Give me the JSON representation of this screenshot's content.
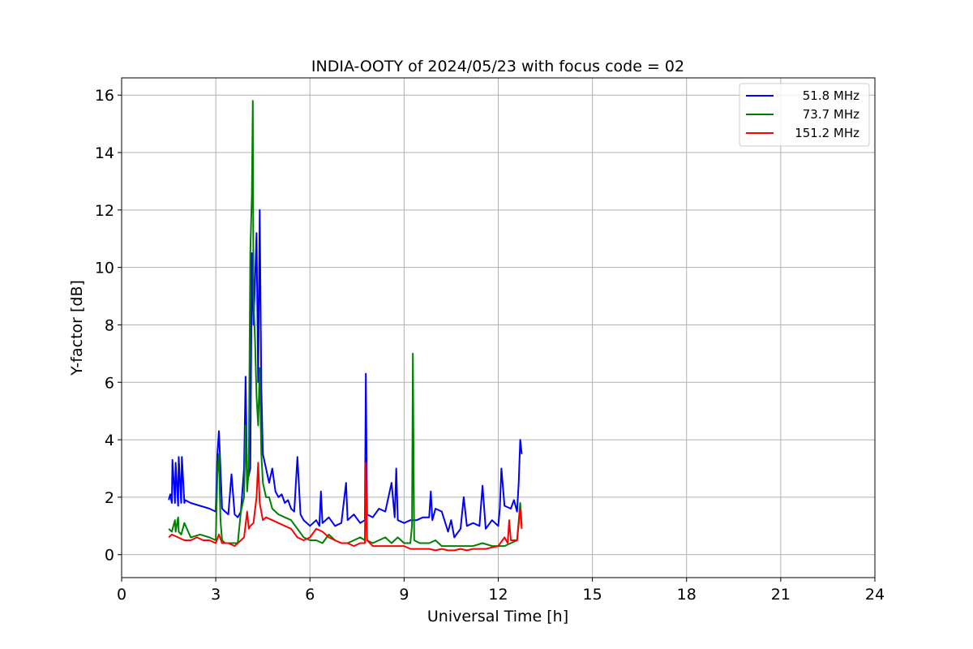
{
  "chart_data": {
    "type": "line",
    "title": "INDIA-OOTY of 2024/05/23 with focus code = 02",
    "xlabel": "Universal Time [h]",
    "ylabel": "Y-factor [dB]",
    "xlim": [
      0,
      24
    ],
    "ylim": [
      -0.8,
      16.6
    ],
    "xticks": [
      0,
      3,
      6,
      9,
      12,
      15,
      18,
      21,
      24
    ],
    "yticks": [
      0,
      2,
      4,
      6,
      8,
      10,
      12,
      14,
      16
    ],
    "grid": true,
    "legend_position": "top-right",
    "series": [
      {
        "name": "51.8 MHz",
        "color": "#0000ff",
        "x": [
          1.5,
          1.55,
          1.6,
          1.62,
          1.7,
          1.72,
          1.8,
          1.82,
          1.9,
          1.92,
          2.0,
          2.02,
          2.2,
          2.5,
          2.8,
          3.0,
          3.05,
          3.1,
          3.15,
          3.2,
          3.3,
          3.4,
          3.5,
          3.6,
          3.7,
          3.8,
          3.9,
          3.95,
          4.0,
          4.1,
          4.15,
          4.2,
          4.25,
          4.3,
          4.35,
          4.4,
          4.45,
          4.5,
          4.6,
          4.7,
          4.8,
          4.9,
          5.0,
          5.1,
          5.2,
          5.3,
          5.4,
          5.5,
          5.6,
          5.7,
          5.8,
          6.0,
          6.2,
          6.3,
          6.35,
          6.4,
          6.6,
          6.8,
          7.0,
          7.15,
          7.2,
          7.4,
          7.6,
          7.75,
          7.78,
          7.82,
          8.0,
          8.2,
          8.4,
          8.6,
          8.7,
          8.75,
          8.8,
          9.0,
          9.2,
          9.4,
          9.6,
          9.8,
          9.85,
          9.9,
          10.0,
          10.2,
          10.4,
          10.5,
          10.6,
          10.8,
          10.9,
          11.0,
          11.2,
          11.4,
          11.5,
          11.6,
          11.8,
          12.0,
          12.05,
          12.1,
          12.2,
          12.4,
          12.5,
          12.6,
          12.65,
          12.7,
          12.75
        ],
        "y": [
          1.9,
          2.1,
          1.8,
          3.3,
          1.8,
          3.2,
          1.7,
          3.4,
          1.8,
          3.4,
          1.8,
          1.9,
          1.8,
          1.7,
          1.6,
          1.5,
          3.5,
          4.3,
          3.0,
          1.6,
          1.5,
          1.4,
          2.8,
          1.4,
          1.3,
          1.5,
          3.0,
          6.2,
          2.5,
          3.0,
          10.5,
          8.0,
          9.5,
          11.2,
          6.0,
          12.0,
          5.8,
          3.5,
          3.0,
          2.5,
          3.0,
          2.2,
          2.0,
          2.1,
          1.8,
          1.9,
          1.6,
          1.5,
          3.4,
          1.4,
          1.2,
          1.0,
          1.2,
          1.0,
          2.2,
          1.1,
          1.3,
          1.0,
          1.1,
          2.5,
          1.2,
          1.4,
          1.1,
          1.2,
          6.3,
          1.4,
          1.3,
          1.6,
          1.5,
          2.5,
          1.3,
          3.0,
          1.2,
          1.1,
          1.2,
          1.2,
          1.3,
          1.3,
          2.2,
          1.2,
          1.6,
          1.5,
          0.8,
          1.2,
          0.6,
          0.9,
          2.0,
          1.0,
          1.1,
          1.0,
          2.4,
          0.9,
          1.2,
          1.0,
          1.6,
          3.0,
          1.7,
          1.6,
          1.9,
          1.5,
          2.5,
          4.0,
          3.5
        ]
      },
      {
        "name": "73.7 MHz",
        "color": "#008000",
        "x": [
          1.5,
          1.6,
          1.7,
          1.72,
          1.8,
          1.82,
          1.9,
          2.0,
          2.2,
          2.5,
          2.8,
          3.0,
          3.05,
          3.1,
          3.15,
          3.2,
          3.3,
          3.5,
          3.7,
          3.8,
          3.9,
          3.95,
          4.0,
          4.05,
          4.1,
          4.15,
          4.18,
          4.2,
          4.25,
          4.3,
          4.35,
          4.4,
          4.45,
          4.5,
          4.6,
          4.7,
          4.8,
          5.0,
          5.2,
          5.4,
          5.6,
          5.8,
          6.0,
          6.2,
          6.4,
          6.6,
          6.8,
          7.0,
          7.2,
          7.4,
          7.6,
          7.75,
          7.78,
          7.82,
          8.0,
          8.2,
          8.4,
          8.6,
          8.8,
          9.0,
          9.2,
          9.25,
          9.28,
          9.32,
          9.5,
          9.8,
          10.0,
          10.2,
          10.5,
          10.8,
          11.0,
          11.2,
          11.5,
          11.8,
          12.0,
          12.2,
          12.4,
          12.6,
          12.7,
          12.75
        ],
        "y": [
          0.9,
          0.8,
          1.2,
          0.8,
          1.3,
          0.8,
          0.7,
          1.1,
          0.6,
          0.7,
          0.6,
          0.5,
          2.8,
          3.5,
          1.2,
          0.5,
          0.4,
          0.4,
          0.4,
          1.5,
          2.0,
          4.5,
          2.2,
          3.0,
          10.5,
          12.5,
          15.8,
          9.0,
          7.5,
          5.5,
          4.5,
          6.5,
          3.5,
          2.5,
          2.0,
          2.0,
          1.6,
          1.4,
          1.3,
          1.2,
          0.9,
          0.6,
          0.5,
          0.5,
          0.4,
          0.7,
          0.5,
          0.4,
          0.4,
          0.5,
          0.6,
          0.5,
          2.5,
          0.5,
          0.4,
          0.5,
          0.6,
          0.4,
          0.6,
          0.4,
          0.4,
          1.0,
          7.0,
          0.5,
          0.4,
          0.4,
          0.5,
          0.3,
          0.3,
          0.3,
          0.3,
          0.3,
          0.4,
          0.3,
          0.3,
          0.3,
          0.4,
          0.5,
          1.8,
          1.0
        ]
      },
      {
        "name": "151.2 MHz",
        "color": "#ff0000",
        "x": [
          1.5,
          1.6,
          1.8,
          2.0,
          2.2,
          2.4,
          2.6,
          2.8,
          3.0,
          3.1,
          3.2,
          3.4,
          3.6,
          3.8,
          3.9,
          4.0,
          4.05,
          4.1,
          4.2,
          4.3,
          4.35,
          4.4,
          4.5,
          4.6,
          4.8,
          5.0,
          5.2,
          5.4,
          5.6,
          5.8,
          6.0,
          6.2,
          6.4,
          6.6,
          6.8,
          7.0,
          7.2,
          7.4,
          7.6,
          7.75,
          7.78,
          7.82,
          8.0,
          8.2,
          8.4,
          8.6,
          8.8,
          9.0,
          9.2,
          9.4,
          9.6,
          9.8,
          10.0,
          10.2,
          10.4,
          10.6,
          10.8,
          11.0,
          11.2,
          11.4,
          11.6,
          11.8,
          12.0,
          12.2,
          12.3,
          12.35,
          12.4,
          12.6,
          12.7,
          12.75
        ],
        "y": [
          0.6,
          0.7,
          0.6,
          0.5,
          0.5,
          0.6,
          0.5,
          0.5,
          0.4,
          0.7,
          0.4,
          0.4,
          0.3,
          0.5,
          0.6,
          1.5,
          0.9,
          1.0,
          1.1,
          2.0,
          3.2,
          1.8,
          1.2,
          1.3,
          1.2,
          1.1,
          1.0,
          0.9,
          0.6,
          0.5,
          0.6,
          0.9,
          0.8,
          0.6,
          0.5,
          0.4,
          0.4,
          0.3,
          0.4,
          0.4,
          3.2,
          0.5,
          0.3,
          0.3,
          0.3,
          0.3,
          0.3,
          0.3,
          0.2,
          0.2,
          0.2,
          0.2,
          0.15,
          0.2,
          0.15,
          0.15,
          0.2,
          0.15,
          0.2,
          0.2,
          0.2,
          0.25,
          0.3,
          0.6,
          0.4,
          1.2,
          0.5,
          0.5,
          1.6,
          0.9
        ]
      }
    ]
  }
}
